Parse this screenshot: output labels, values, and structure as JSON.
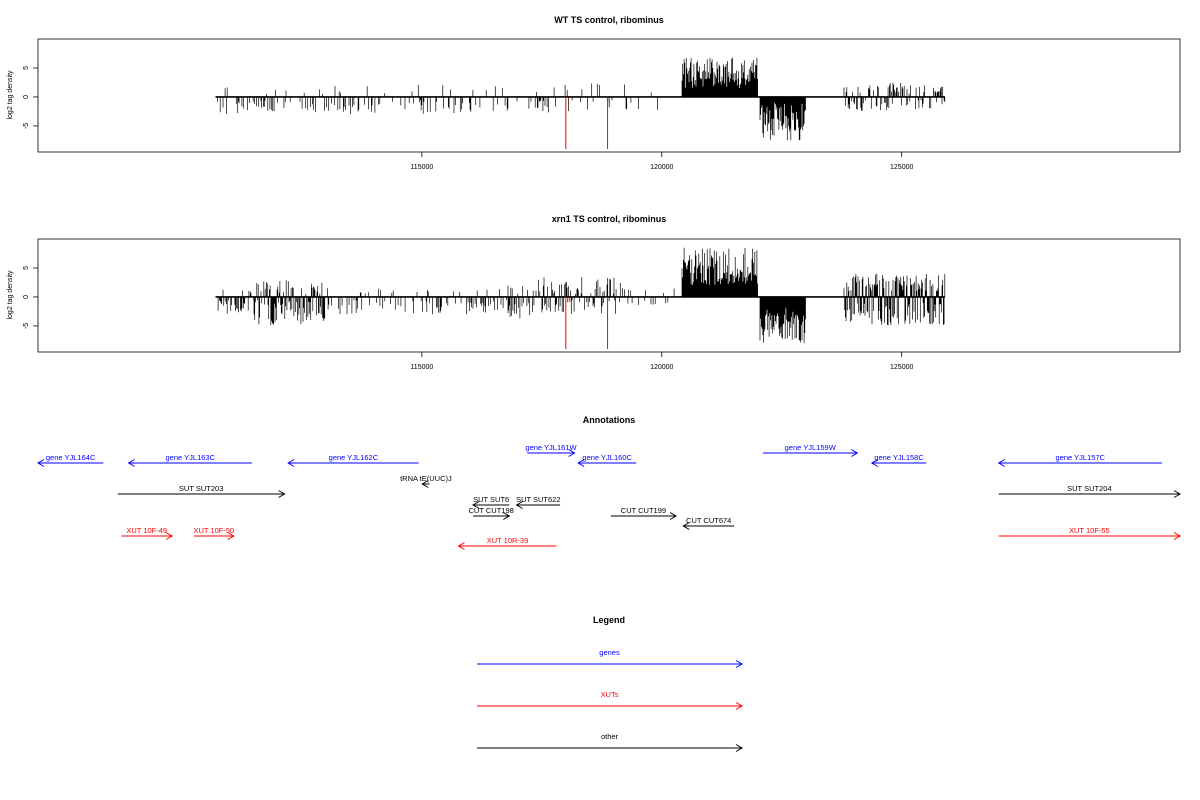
{
  "colors": {
    "genes": "#0000ff",
    "xuts": "#ff0000",
    "other": "#000000",
    "marker": "#ff0000"
  },
  "chart_data": [
    {
      "type": "bar",
      "title": "WT TS control, ribominus",
      "ylabel": "log2 tag density",
      "xlabel": "",
      "xlim": [
        107000,
        130800
      ],
      "ylim": [
        -9.5,
        10
      ],
      "xticks": [
        115000,
        120000,
        125000
      ],
      "yticks": [
        -5,
        0,
        5
      ],
      "xtick_labels": [
        "115000",
        "120000",
        "125000"
      ],
      "ytick_labels": [
        "-5",
        "0",
        "5"
      ],
      "red_markers": [
        118000,
        118870
      ],
      "signal_ranges": [
        {
          "from": 110700,
          "to": 117800,
          "density": 0.25,
          "pos": [
            0.5,
            2.2
          ],
          "neg": [
            0.5,
            3.0
          ],
          "pos_frac": 0.25
        },
        {
          "from": 117800,
          "to": 120000,
          "density": 0.15,
          "pos": [
            0.5,
            2.5
          ],
          "neg": [
            0.5,
            2.5
          ],
          "pos_frac": 0.5
        },
        {
          "from": 120420,
          "to": 122000,
          "density": 1.0,
          "pos": [
            1.5,
            6.8
          ],
          "neg": [
            0,
            0
          ],
          "pos_frac": 1.0
        },
        {
          "from": 122050,
          "to": 123000,
          "density": 1.0,
          "pos": [
            0,
            0
          ],
          "neg": [
            1.0,
            7.5
          ],
          "pos_frac": 0.0
        },
        {
          "from": 123800,
          "to": 125900,
          "density": 0.55,
          "pos": [
            0.5,
            2.5
          ],
          "neg": [
            0.5,
            2.5
          ],
          "pos_frac": 0.5
        }
      ]
    },
    {
      "type": "bar",
      "title": "xrn1 TS control, ribominus",
      "ylabel": "log2 tag density",
      "xlabel": "",
      "xlim": [
        107000,
        130800
      ],
      "ylim": [
        -9.5,
        10
      ],
      "xticks": [
        115000,
        120000,
        125000
      ],
      "yticks": [
        -5,
        0,
        5
      ],
      "xtick_labels": [
        "115000",
        "120000",
        "125000"
      ],
      "ytick_labels": [
        "-5",
        "0",
        "5"
      ],
      "red_markers": [
        118000,
        118870
      ],
      "signal_ranges": [
        {
          "from": 110700,
          "to": 111500,
          "density": 0.5,
          "pos": [
            0.5,
            1.5
          ],
          "neg": [
            0.5,
            3.0
          ],
          "pos_frac": 0.2
        },
        {
          "from": 111500,
          "to": 113000,
          "density": 0.85,
          "pos": [
            0.5,
            3.0
          ],
          "neg": [
            0.5,
            5.0
          ],
          "pos_frac": 0.3
        },
        {
          "from": 113000,
          "to": 116800,
          "density": 0.35,
          "pos": [
            0.5,
            1.5
          ],
          "neg": [
            0.5,
            3.0
          ],
          "pos_frac": 0.2
        },
        {
          "from": 116800,
          "to": 117400,
          "density": 0.7,
          "pos": [
            0.5,
            2.0
          ],
          "neg": [
            0.5,
            4.0
          ],
          "pos_frac": 0.3
        },
        {
          "from": 117400,
          "to": 119200,
          "density": 0.6,
          "pos": [
            0.5,
            3.5
          ],
          "neg": [
            0.5,
            3.0
          ],
          "pos_frac": 0.6
        },
        {
          "from": 119200,
          "to": 120300,
          "density": 0.2,
          "pos": [
            0.5,
            1.5
          ],
          "neg": [
            0.5,
            1.5
          ],
          "pos_frac": 0.4
        },
        {
          "from": 120420,
          "to": 122000,
          "density": 1.0,
          "pos": [
            2.0,
            8.5
          ],
          "neg": [
            0,
            0
          ],
          "pos_frac": 1.0
        },
        {
          "from": 122050,
          "to": 123000,
          "density": 1.0,
          "pos": [
            0,
            0
          ],
          "neg": [
            1.5,
            8.0
          ],
          "pos_frac": 0.0
        },
        {
          "from": 123800,
          "to": 125900,
          "density": 1.0,
          "pos": [
            1.0,
            4.0
          ],
          "neg": [
            1.0,
            5.0
          ],
          "pos_frac": 0.5
        }
      ]
    }
  ],
  "annotations": {
    "title": "Annotations",
    "items": [
      {
        "label": "gene YJL164C",
        "kind": "genes",
        "dir": "left",
        "from": 107000,
        "to": 108800,
        "row": 0
      },
      {
        "label": "gene YJL163C",
        "kind": "genes",
        "dir": "left",
        "from": 109500,
        "to": 112900,
        "row": 0
      },
      {
        "label": "gene YJL162C",
        "kind": "genes",
        "dir": "left",
        "from": 113900,
        "to": 117500,
        "row": 0
      },
      {
        "label": "gene YJL161W",
        "kind": "genes",
        "dir": "right",
        "from": 120500,
        "to": 121800,
        "row": -1
      },
      {
        "label": "gene YJL160C",
        "kind": "genes",
        "dir": "left",
        "from": 121900,
        "to": 123500,
        "row": 0
      },
      {
        "label": "gene YJL159W",
        "kind": "genes",
        "dir": "right",
        "from": 127000,
        "to": 129600,
        "row": -1
      },
      {
        "label": "gene YJL158C",
        "kind": "genes",
        "dir": "left",
        "from": 130000,
        "to": 131500,
        "row": 0
      },
      {
        "label": "gene YJL157C",
        "kind": "genes",
        "dir": "left",
        "from": 133500,
        "to": 138000,
        "row": 0
      },
      {
        "label": "tRNA tE(UUC)J",
        "kind": "other",
        "dir": "left",
        "from": 117600,
        "to": 117800,
        "row": 1
      },
      {
        "label": "SUT SUT203",
        "kind": "other",
        "dir": "right",
        "from": 109200,
        "to": 113800,
        "row": 2
      },
      {
        "label": "SUT SUT204",
        "kind": "other",
        "dir": "right",
        "from": 133500,
        "to": 138500,
        "row": 2
      },
      {
        "label": "SUT SUT6",
        "kind": "other",
        "dir": "left",
        "from": 119000,
        "to": 120000,
        "row": 3
      },
      {
        "label": "SUT SUT622",
        "kind": "other",
        "dir": "left",
        "from": 120200,
        "to": 121400,
        "row": 3
      },
      {
        "label": "CUT CUT198",
        "kind": "other",
        "dir": "right",
        "from": 119000,
        "to": 120000,
        "row": 4
      },
      {
        "label": "CUT CUT199",
        "kind": "other",
        "dir": "right",
        "from": 122800,
        "to": 124600,
        "row": 4
      },
      {
        "label": "CUT CUT674",
        "kind": "other",
        "dir": "left",
        "from": 124800,
        "to": 126200,
        "row": 5
      },
      {
        "label": "XUT 10F-49",
        "kind": "xuts",
        "dir": "right",
        "from": 109300,
        "to": 110700,
        "row": 6
      },
      {
        "label": "XUT 10F-50",
        "kind": "xuts",
        "dir": "right",
        "from": 111300,
        "to": 112400,
        "row": 6
      },
      {
        "label": "XUT 10R-39",
        "kind": "xuts",
        "dir": "left",
        "from": 118600,
        "to": 121300,
        "row": 7
      },
      {
        "label": "XUT 10F-55",
        "kind": "xuts",
        "dir": "right",
        "from": 133500,
        "to": 138500,
        "row": 6
      }
    ]
  },
  "legend": {
    "title": "Legend",
    "items": [
      {
        "label": "genes",
        "kind": "genes"
      },
      {
        "label": "XUTs",
        "kind": "xuts"
      },
      {
        "label": "other",
        "kind": "other"
      }
    ]
  }
}
